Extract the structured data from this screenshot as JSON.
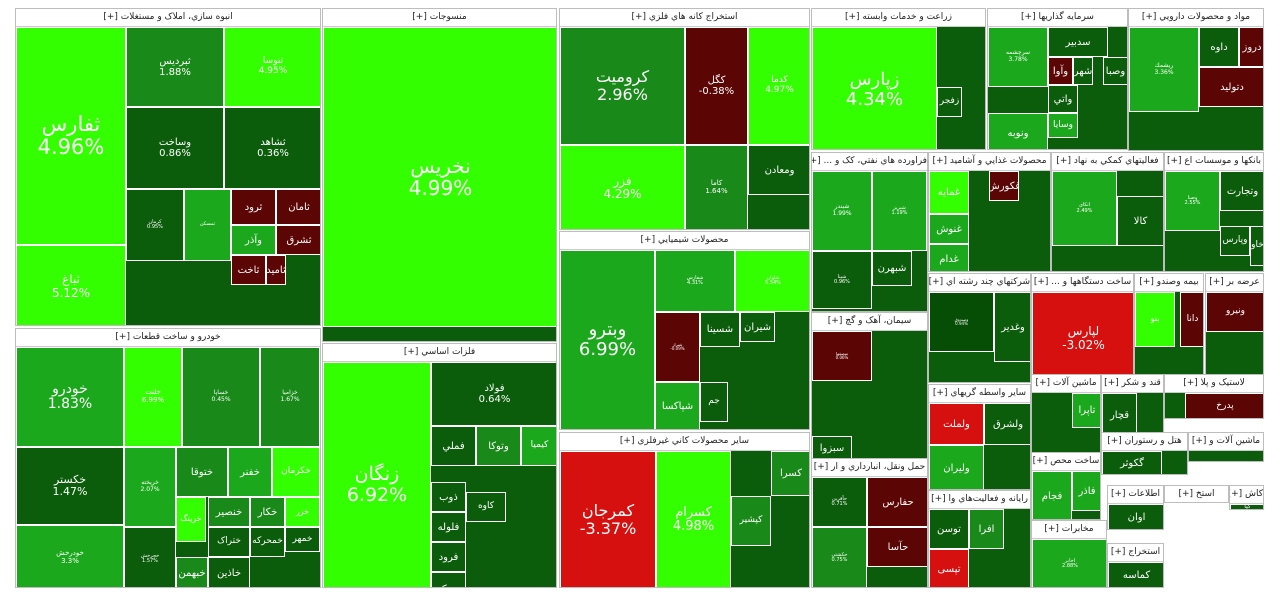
{
  "colors": {
    "bright_green": "#33ff00",
    "mid_green": "#1ca81c",
    "green": "#198a19",
    "dark_green": "#0b5c0b",
    "darkest_green": "#064d06",
    "dark_red": "#5c0505",
    "red": "#d60f0f",
    "header_bg": "#ffffff"
  },
  "chart_data": {
    "type": "treemap",
    "sectors": [
      {
        "title": "انبوه سازي، املاک و مستغلات [+]",
        "tiles": [
          {
            "name": "ثفارس",
            "pct": "4.96%"
          },
          {
            "name": "ثباغ",
            "pct": "5.12%"
          },
          {
            "name": "ثبردیس",
            "pct": "1.88%"
          },
          {
            "name": "ثنوسا",
            "pct": "4.95%"
          },
          {
            "name": "وساخت",
            "pct": "0.86%"
          },
          {
            "name": "ثشاهد",
            "pct": "0.36%"
          },
          {
            "name": "کرمان",
            "pct": "0.95%"
          },
          {
            "name": "ثمسکن",
            "pct": ""
          },
          {
            "name": "ثرود",
            "pct": ""
          },
          {
            "name": "ثامان",
            "pct": ""
          },
          {
            "name": "وآذر",
            "pct": ""
          },
          {
            "name": "ثشرق",
            "pct": ""
          },
          {
            "name": "ثاخت",
            "pct": ""
          },
          {
            "name": "ثامید",
            "pct": ""
          }
        ]
      },
      {
        "title": "منسوجات [+]",
        "tiles": [
          {
            "name": "نخریس",
            "pct": "4.99%"
          }
        ]
      },
      {
        "title": "استخراج کانه هاي فلزي [+]",
        "tiles": [
          {
            "name": "کرومیت",
            "pct": "2.96%"
          },
          {
            "name": "کگل",
            "pct": "-0.38%"
          },
          {
            "name": "کدما",
            "pct": "4.97%"
          },
          {
            "name": "فزر",
            "pct": "4.29%"
          },
          {
            "name": "کاما",
            "pct": "1.64%"
          },
          {
            "name": "ومعادن",
            "pct": ""
          }
        ]
      },
      {
        "title": "زراعت و خدمات وابسته [+]",
        "tiles": [
          {
            "name": "زپارس",
            "pct": "4.34%"
          },
          {
            "name": "زفجر",
            "pct": ""
          }
        ]
      },
      {
        "title": "سرمايه گذاريها [+]",
        "tiles": [
          {
            "name": "سرچشمه",
            "pct": "3.78%"
          },
          {
            "name": "سدبیر",
            "pct": ""
          },
          {
            "name": "وآوا",
            "pct": ""
          },
          {
            "name": "شهر",
            "pct": ""
          },
          {
            "name": "وصبا",
            "pct": ""
          },
          {
            "name": "واتي",
            "pct": ""
          },
          {
            "name": "ونوبه",
            "pct": ""
          },
          {
            "name": "وسایا",
            "pct": ""
          }
        ]
      },
      {
        "title": "مواد و محصولات دارويي [+]",
        "tiles": [
          {
            "name": "ريشمك",
            "pct": "3.36%"
          },
          {
            "name": "داوه",
            "pct": ""
          },
          {
            "name": "دروز",
            "pct": ""
          },
          {
            "name": "دتولید",
            "pct": ""
          }
        ]
      },
      {
        "title": "خودرو و ساخت قطعات [+]",
        "tiles": [
          {
            "name": "خودرو",
            "pct": "1.83%"
          },
          {
            "name": "خکستر",
            "pct": "1.47%"
          },
          {
            "name": "خودرخش",
            "pct": "3.3%"
          },
          {
            "name": "خلنت",
            "pct": "6.99%"
          },
          {
            "name": "خساپا",
            "pct": "0.45%"
          },
          {
            "name": "خزامیا",
            "pct": "1.67%"
          },
          {
            "name": "ختوقا",
            "pct": ""
          },
          {
            "name": "خفنر",
            "pct": ""
          },
          {
            "name": "خکرمان",
            "pct": ""
          },
          {
            "name": "خریخته",
            "pct": "2.07%"
          },
          {
            "name": "خرینگ",
            "pct": ""
          },
          {
            "name": "خنصير",
            "pct": ""
          },
          {
            "name": "خکار",
            "pct": ""
          },
          {
            "name": "خزر",
            "pct": ""
          },
          {
            "name": "خچرخش",
            "pct": "1.57%"
          },
          {
            "name": "ختراک",
            "pct": ""
          },
          {
            "name": "خمحرکه",
            "pct": ""
          },
          {
            "name": "خمهر",
            "pct": ""
          },
          {
            "name": "خبهمن",
            "pct": ""
          },
          {
            "name": "خاذين",
            "pct": ""
          }
        ]
      },
      {
        "title": "فلزات اساسي [+]",
        "tiles": [
          {
            "name": "زنگان",
            "pct": "6.92%"
          },
          {
            "name": "فولاد",
            "pct": "0.64%"
          },
          {
            "name": "فملي",
            "pct": ""
          },
          {
            "name": "وتوکا",
            "pct": ""
          },
          {
            "name": "کیمیا",
            "pct": ""
          },
          {
            "name": "فلوله",
            "pct": ""
          },
          {
            "name": "فرود",
            "pct": ""
          },
          {
            "name": "میدکو",
            "pct": ""
          },
          {
            "name": "کاوه",
            "pct": ""
          },
          {
            "name": "ذوب",
            "pct": ""
          }
        ]
      },
      {
        "title": "محصولات شيميايي [+]",
        "tiles": [
          {
            "name": "وبترو",
            "pct": "6.99%"
          },
          {
            "name": "شفارس",
            "pct": "4.31%"
          },
          {
            "name": "شاوان",
            "pct": "5.54%"
          },
          {
            "name": "شیراز",
            "pct": "-0.09%"
          },
          {
            "name": "شسینا",
            "pct": ""
          },
          {
            "name": "شیران",
            "pct": ""
          },
          {
            "name": "شپاکسا",
            "pct": ""
          },
          {
            "name": "جم",
            "pct": ""
          }
        ]
      },
      {
        "title": "ساير محصولات کاني غيرفلزي [+]",
        "tiles": [
          {
            "name": "کمرجان",
            "pct": "-3.37%"
          },
          {
            "name": "کسرام",
            "pct": "4.98%"
          },
          {
            "name": "کپشیر",
            "pct": ""
          },
          {
            "name": "کسرا",
            "pct": ""
          }
        ]
      },
      {
        "title": "فراورده هاي نفتي، کک و ... [+]",
        "tiles": [
          {
            "name": "شبندر",
            "pct": "1.99%"
          },
          {
            "name": "شبریز",
            "pct": "1.19%"
          },
          {
            "name": "شپنا",
            "pct": "0.96%"
          },
          {
            "name": "شبهرن",
            "pct": ""
          }
        ]
      },
      {
        "title": "محصولات غذايي و آشاميد [+]",
        "tiles": [
          {
            "name": "غمایه",
            "pct": ""
          },
          {
            "name": "غنوش",
            "pct": ""
          },
          {
            "name": "غدام",
            "pct": ""
          },
          {
            "name": "غکورش",
            "pct": ""
          }
        ]
      },
      {
        "title": "فعاليتهاي کمکي به نهاد [+]",
        "tiles": [
          {
            "name": "اتکای",
            "pct": "2.49%"
          },
          {
            "name": "کالا",
            "pct": ""
          }
        ]
      },
      {
        "title": "بانکها و موسسات اع [+]",
        "tiles": [
          {
            "name": "وصنا",
            "pct": "2.55%"
          },
          {
            "name": "وتجارت",
            "pct": ""
          },
          {
            "name": "وپارس",
            "pct": ""
          },
          {
            "name": "وخاور",
            "pct": ""
          }
        ]
      },
      {
        "title": "سيمان، آهک و گچ [+]",
        "tiles": [
          {
            "name": "سصفها",
            "pct": "0.06%"
          },
          {
            "name": "سبزوا",
            "pct": ""
          }
        ]
      },
      {
        "title": "شرکتهاي چند رشته اي [+]",
        "tiles": [
          {
            "name": "وصندوق",
            "pct": "0.94%"
          },
          {
            "name": "وغدیر",
            "pct": ""
          }
        ]
      },
      {
        "title": "ساخت دستگاهها و ... [+]",
        "tiles": [
          {
            "name": "لپارس",
            "pct": "-3.02%"
          }
        ]
      },
      {
        "title": "بیمه وصندو [+]",
        "tiles": [
          {
            "name": "بنو",
            "pct": ""
          },
          {
            "name": "دانا",
            "pct": ""
          }
        ]
      },
      {
        "title": "عرضه بر [+]",
        "tiles": [
          {
            "name": "ونیرو",
            "pct": ""
          }
        ]
      },
      {
        "title": "ساير واسطه گريهاي [+]",
        "tiles": [
          {
            "name": "ولملت",
            "pct": ""
          },
          {
            "name": "ولشرق",
            "pct": ""
          },
          {
            "name": "ولیران",
            "pct": ""
          }
        ]
      },
      {
        "title": "ماشين آلات [+]",
        "tiles": [
          {
            "name": "تاپرا",
            "pct": ""
          }
        ]
      },
      {
        "title": "قند و شکر [+]",
        "tiles": [
          {
            "name": "قچار",
            "pct": ""
          }
        ]
      },
      {
        "title": "لاستيک و پلا [+]",
        "tiles": [
          {
            "name": "پدرخ",
            "pct": ""
          }
        ]
      },
      {
        "title": "هتل و رستوران [+]",
        "tiles": [
          {
            "name": "گکوثر",
            "pct": ""
          }
        ]
      },
      {
        "title": "ماشین آلات و [+]",
        "tiles": []
      },
      {
        "title": "حمل ونقل، انبارداري و ار [+]",
        "tiles": [
          {
            "name": "حآفرین",
            "pct": "0.71%"
          },
          {
            "name": "حکشتی",
            "pct": "0.75%"
          },
          {
            "name": "حفارس",
            "pct": ""
          },
          {
            "name": "حآسا",
            "pct": ""
          }
        ]
      },
      {
        "title": "رايانه و فعاليت‌هاي وا [+]",
        "tiles": [
          {
            "name": "توسن",
            "pct": ""
          },
          {
            "name": "افرا",
            "pct": ""
          },
          {
            "name": "تپسی",
            "pct": ""
          }
        ]
      },
      {
        "title": "ساخت محص [+]",
        "tiles": [
          {
            "name": "فجام",
            "pct": ""
          },
          {
            "name": "فاذر",
            "pct": ""
          }
        ]
      },
      {
        "title": "مخابرات [+]",
        "tiles": [
          {
            "name": "اخابر",
            "pct": "2.88%"
          }
        ]
      },
      {
        "title": "اطلاعات [+]",
        "tiles": [
          {
            "name": "اوان",
            "pct": ""
          }
        ]
      },
      {
        "title": "استخراج [+]",
        "tiles": [
          {
            "name": "کماسه",
            "pct": ""
          }
        ]
      },
      {
        "title": "استخ [+]",
        "tiles": []
      },
      {
        "title": "کاش [+]",
        "tiles": [
          {
            "name": "کپا",
            "pct": ""
          }
        ]
      }
    ]
  }
}
